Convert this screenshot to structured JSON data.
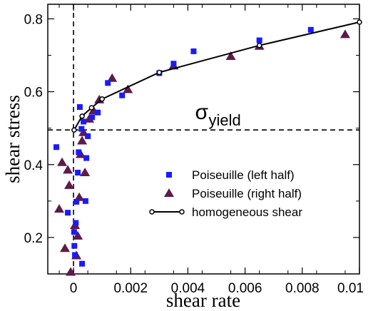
{
  "chart_data": {
    "type": "scatter",
    "xlabel": "shear rate",
    "ylabel": "shear stress",
    "xlim": [
      -0.0009,
      0.01
    ],
    "ylim": [
      0.1,
      0.84
    ],
    "x_ticks": [
      0,
      0.002,
      0.004,
      0.006,
      0.008,
      0.01
    ],
    "x_tick_labels": [
      "0",
      "0.002",
      "0.004",
      "0.006",
      "0.008",
      "0.01"
    ],
    "y_ticks": [
      0.2,
      0.4,
      0.6,
      0.8
    ],
    "y_tick_labels": [
      "0.2",
      "0.4",
      "0.6",
      "0.8"
    ],
    "grid": false,
    "legend_placement": "center-right",
    "annotation": {
      "symbol": "σ",
      "subscript": "yield",
      "x": 0.00425,
      "y": 0.525
    },
    "reference_lines": {
      "vertical_x": 0,
      "horizontal_y": 0.495
    },
    "series": [
      {
        "name": "Poiseuille (left half)",
        "marker": "square",
        "color": "#1a1aff",
        "points": [
          [
            -0.0006,
            0.448
          ],
          [
            -0.0002,
            0.268
          ],
          [
            2e-05,
            0.215
          ],
          [
            3e-05,
            0.177
          ],
          [
            5e-05,
            0.152
          ],
          [
            8e-05,
            0.24
          ],
          [
            0.0001,
            0.298
          ],
          [
            0.00015,
            0.378
          ],
          [
            0.00018,
            0.434
          ],
          [
            0.00022,
            0.558
          ],
          [
            0.00028,
            0.498
          ],
          [
            0.0003,
            0.128
          ],
          [
            0.00035,
            0.518
          ],
          [
            0.00042,
            0.3
          ],
          [
            0.00045,
            0.418
          ],
          [
            0.0005,
            0.478
          ],
          [
            0.00065,
            0.53
          ],
          [
            0.00085,
            0.543
          ],
          [
            0.0012,
            0.624
          ],
          [
            0.0017,
            0.59
          ],
          [
            0.003,
            0.651
          ],
          [
            0.0035,
            0.677
          ],
          [
            0.0042,
            0.711
          ],
          [
            0.0065,
            0.741
          ],
          [
            0.0083,
            0.77
          ]
        ]
      },
      {
        "name": "Poiseuille (right half)",
        "marker": "triangle",
        "color": "#5e1a4a",
        "points": [
          [
            -0.0005,
            0.278
          ],
          [
            -0.0004,
            0.406
          ],
          [
            -0.0003,
            0.17
          ],
          [
            -0.0002,
            0.385
          ],
          [
            -0.00015,
            0.343
          ],
          [
            -0.0001,
            0.105
          ],
          [
            5e-05,
            0.233
          ],
          [
            0.0001,
            0.15
          ],
          [
            0.00015,
            0.204
          ],
          [
            0.0002,
            0.31
          ],
          [
            0.00025,
            0.428
          ],
          [
            0.0003,
            0.465
          ],
          [
            0.00035,
            0.488
          ],
          [
            0.0004,
            0.378
          ],
          [
            0.00055,
            0.525
          ],
          [
            0.0007,
            0.548
          ],
          [
            0.0009,
            0.578
          ],
          [
            0.00135,
            0.637
          ],
          [
            0.0019,
            0.606
          ],
          [
            0.0035,
            0.671
          ],
          [
            0.0055,
            0.697
          ],
          [
            0.0065,
            0.725
          ],
          [
            0.0095,
            0.757
          ]
        ]
      },
      {
        "name": "homogeneous shear",
        "marker": "open-circle-line",
        "color": "#000000",
        "points": [
          [
            2e-05,
            0.495
          ],
          [
            0.0003,
            0.533
          ],
          [
            0.00063,
            0.556
          ],
          [
            0.001,
            0.58
          ],
          [
            0.003,
            0.653
          ],
          [
            0.0065,
            0.727
          ],
          [
            0.01,
            0.791
          ]
        ]
      }
    ]
  }
}
